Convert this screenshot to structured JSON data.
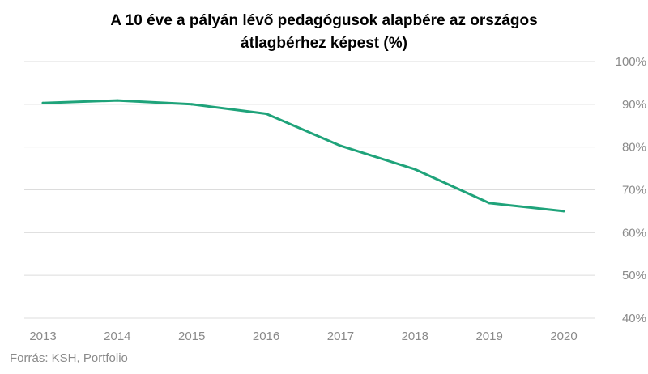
{
  "chart_data": {
    "type": "line",
    "title_lines": [
      "A 10 éve a pályán lévő pedagógusok alapbére az országos",
      "átlagbérhez képest (%)"
    ],
    "x": [
      "2013",
      "2014",
      "2015",
      "2016",
      "2017",
      "2018",
      "2019",
      "2020"
    ],
    "series": [
      {
        "values": [
          90.3,
          90.9,
          90.0,
          87.8,
          80.3,
          74.8,
          66.9,
          65.0
        ],
        "color": "#1fa37a"
      }
    ],
    "y_ticks": [
      "100%",
      "90%",
      "80%",
      "70%",
      "60%",
      "50%",
      "40%"
    ],
    "y_tick_values": [
      100,
      90,
      80,
      70,
      60,
      50,
      40
    ],
    "ylim": [
      40,
      100
    ],
    "y_axis_side": "right",
    "grid": true,
    "legend": "none",
    "source": "Forrás: KSH, Portfolio"
  }
}
